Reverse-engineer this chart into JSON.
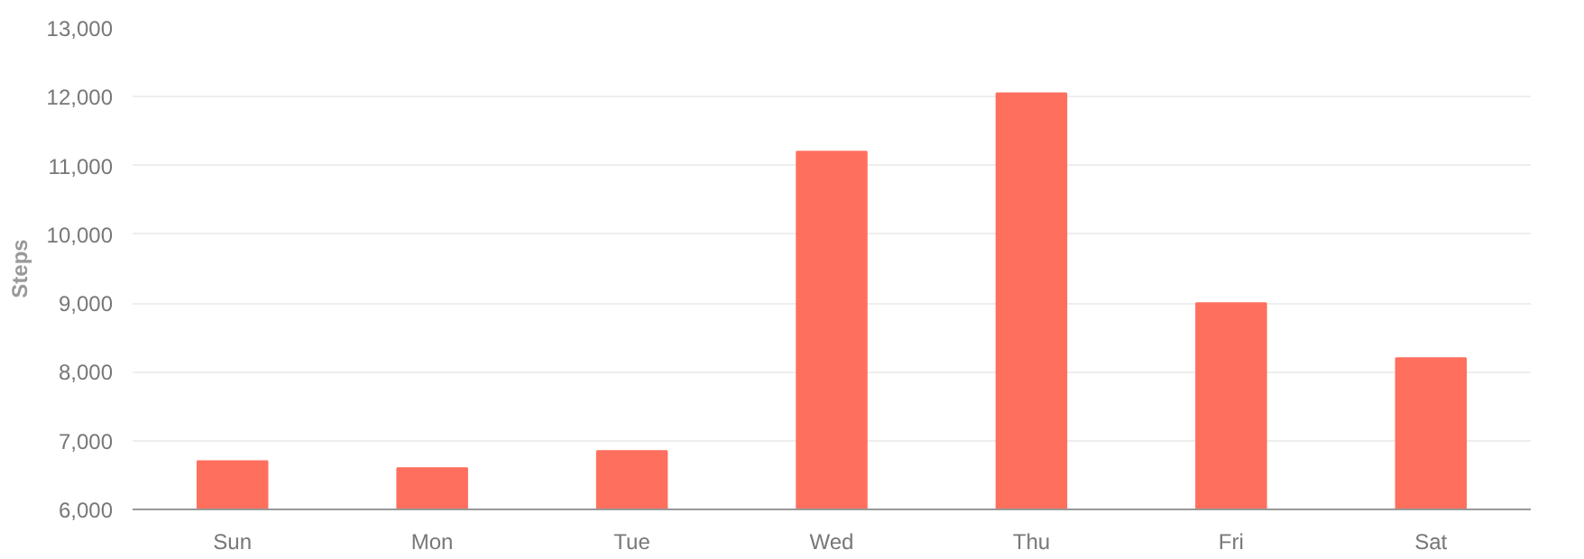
{
  "chart_data": {
    "type": "bar",
    "ylabel": "Steps",
    "categories": [
      "Sun",
      "Mon",
      "Tue",
      "Wed",
      "Thu",
      "Fri",
      "Sat"
    ],
    "values": [
      6700,
      6600,
      6850,
      11200,
      12050,
      9000,
      8200
    ],
    "color": "#ff6f5e",
    "ylim": [
      6000,
      13000
    ],
    "yticks": [
      {
        "value": 6000,
        "label": "6,000"
      },
      {
        "value": 7000,
        "label": "7,000"
      },
      {
        "value": 8000,
        "label": "8,000"
      },
      {
        "value": 9000,
        "label": "9,000"
      },
      {
        "value": 10000,
        "label": "10,000"
      },
      {
        "value": 11000,
        "label": "11,000"
      },
      {
        "value": 12000,
        "label": "12,000"
      },
      {
        "value": 13000,
        "label": "13,000"
      }
    ],
    "grid": "y"
  }
}
